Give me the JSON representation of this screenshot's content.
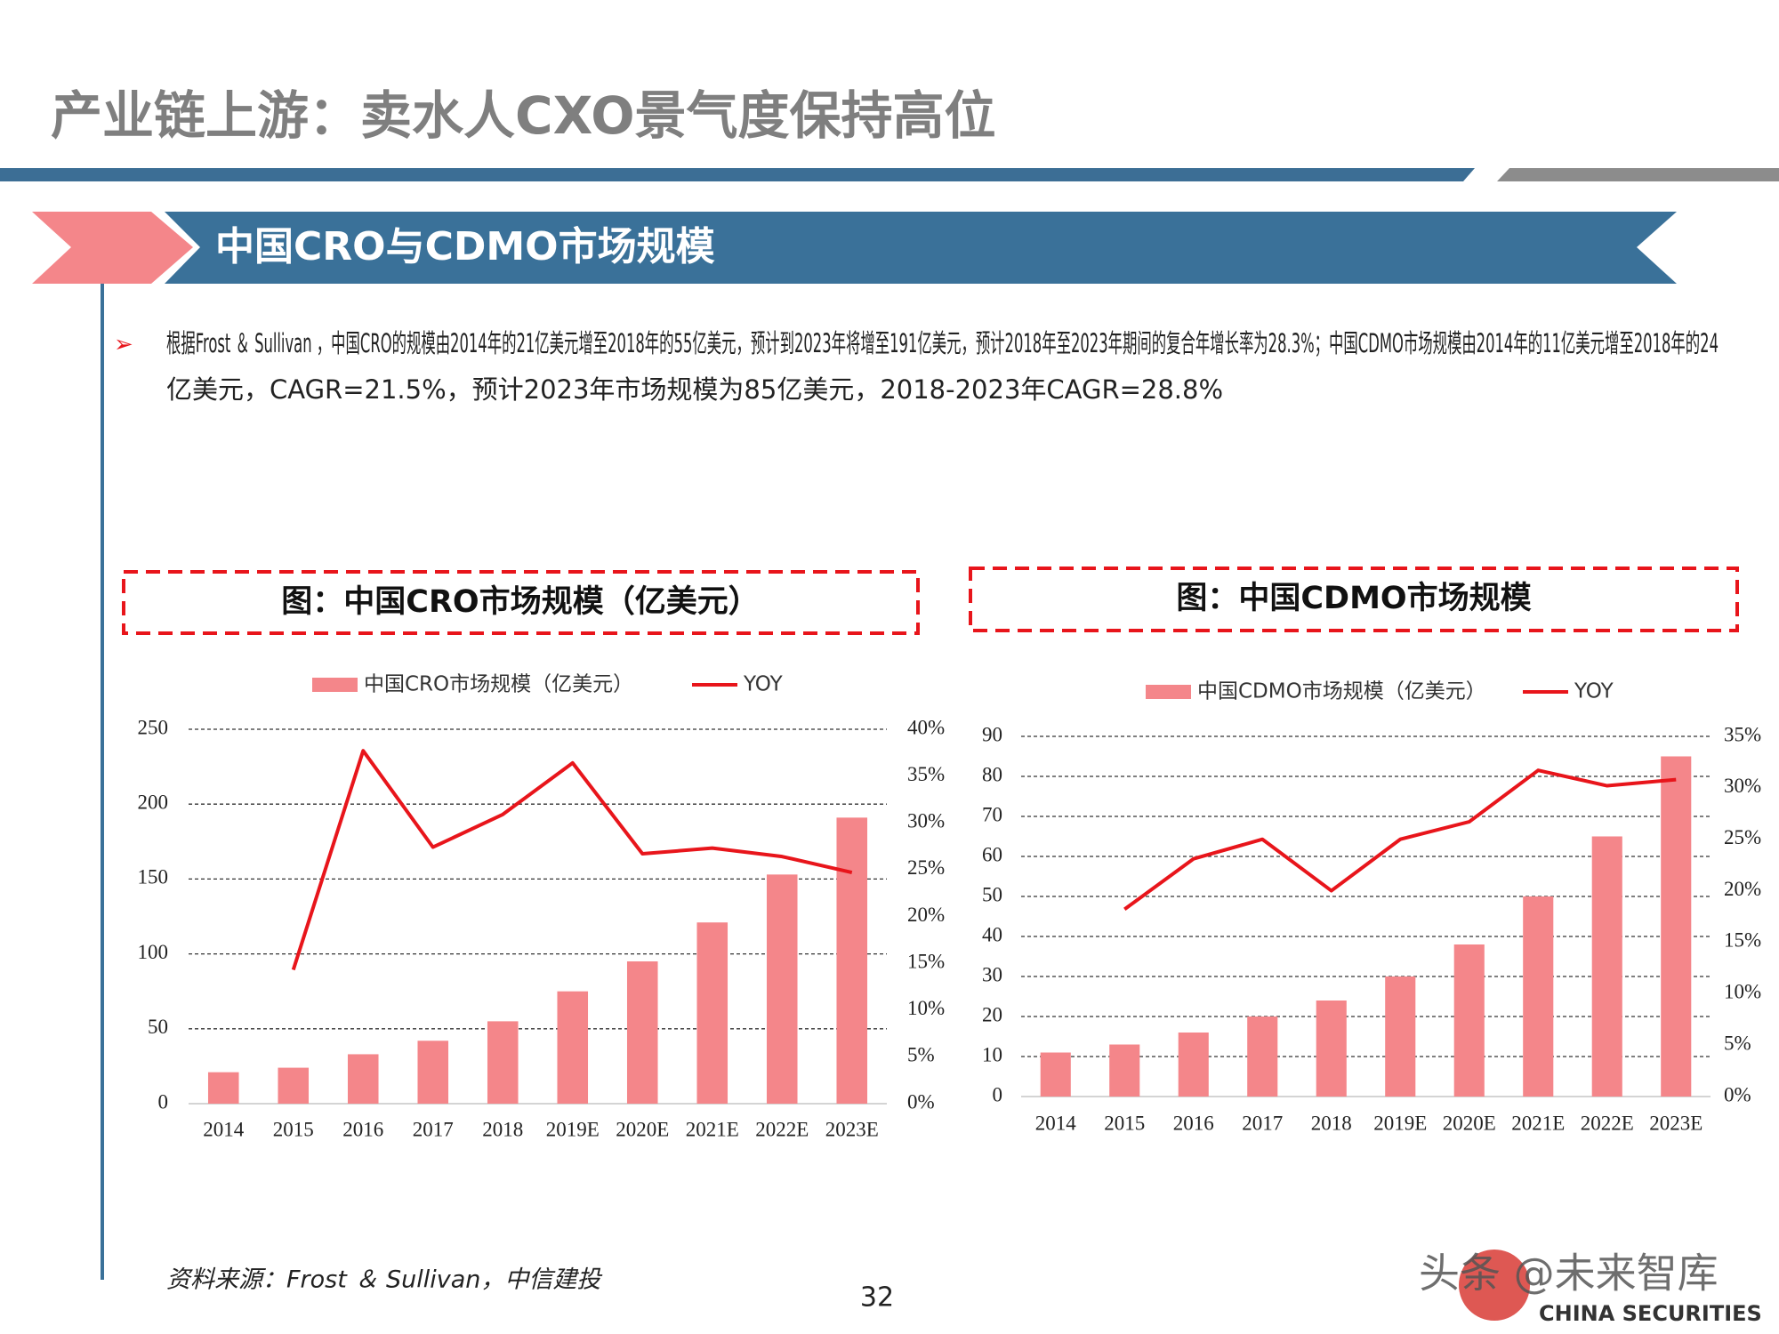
{
  "header": {
    "title": "产业链上游：卖水人CXO景气度保持高位"
  },
  "section": {
    "title": "中国CRO与CDMO市场规模"
  },
  "bullet": {
    "lines": [
      "根据Frost ＆ Sullivan ，中国CRO的规模由2014年的21亿美元增至2018年的55亿美元，预计到2023年将增至191亿美元，预计2018年至2023年期间的复合年增长率为28.3%；中国CDMO市场规模由2014年的11亿美元增至2018年的24",
      "亿美元，CAGR=21.5%，预计2023年市场规模为85亿美元，2018-2023年CAGR=28.8%"
    ]
  },
  "chart_data": [
    {
      "type": "bar-line",
      "title": "图：中国CRO市场规模（亿美元）",
      "categories": [
        "2014",
        "2015",
        "2016",
        "2017",
        "2018",
        "2019E",
        "2020E",
        "2021E",
        "2022E",
        "2023E"
      ],
      "series": [
        {
          "name": "中国CRO市场规模（亿美元）",
          "color": "#f4868a",
          "values": [
            21,
            24,
            33,
            42,
            55,
            75,
            95,
            121,
            153,
            191
          ]
        },
        {
          "name": "YOY",
          "color": "#e8151b",
          "axis": "y2",
          "values": [
            null,
            14.3,
            37.7,
            27.4,
            30.9,
            36.4,
            26.7,
            27.3,
            26.4,
            24.7
          ]
        }
      ],
      "ylim": [
        0,
        250
      ],
      "yticks": [
        0,
        50,
        100,
        150,
        200,
        250
      ],
      "y2lim": [
        0,
        40
      ],
      "y2ticks": [
        {
          "value": 0,
          "label": "0%"
        },
        {
          "value": 5,
          "label": "5%"
        },
        {
          "value": 10,
          "label": "10%"
        },
        {
          "value": 15,
          "label": "15%"
        },
        {
          "value": 20,
          "label": "20%"
        },
        {
          "value": 25,
          "label": "25%"
        },
        {
          "value": 30,
          "label": "30%"
        },
        {
          "value": 35,
          "label": "35%"
        },
        {
          "value": 40,
          "label": "40%"
        }
      ],
      "grid": true
    },
    {
      "type": "bar-line",
      "title": "图：中国CDMO市场规模",
      "categories": [
        "2014",
        "2015",
        "2016",
        "2017",
        "2018",
        "2019E",
        "2020E",
        "2021E",
        "2022E",
        "2023E"
      ],
      "series": [
        {
          "name": "中国CDMO市场规模（亿美元）",
          "color": "#f4868a",
          "values": [
            11,
            13,
            16,
            20,
            24,
            30,
            38,
            50,
            65,
            85
          ]
        },
        {
          "name": "YOY",
          "color": "#e8151b",
          "axis": "y2",
          "values": [
            null,
            18.2,
            23.1,
            25.0,
            20.0,
            25.0,
            26.7,
            31.7,
            30.2,
            30.8
          ]
        }
      ],
      "ylim": [
        0,
        90
      ],
      "yticks": [
        0,
        10,
        20,
        30,
        40,
        50,
        60,
        70,
        80,
        90
      ],
      "y2lim": [
        0,
        35
      ],
      "y2ticks": [
        {
          "value": 0,
          "label": "0%"
        },
        {
          "value": 5,
          "label": "5%"
        },
        {
          "value": 10,
          "label": "10%"
        },
        {
          "value": 15,
          "label": "15%"
        },
        {
          "value": 20,
          "label": "20%"
        },
        {
          "value": 25,
          "label": "25%"
        },
        {
          "value": 30,
          "label": "30%"
        },
        {
          "value": 35,
          "label": "35%"
        }
      ],
      "grid": true
    }
  ],
  "footer": {
    "source": "资料来源：Frost ＆ Sullivan，中信建投",
    "page": "32",
    "watermark": "头条 @未来智库",
    "logo": "CHINA SECURITIES"
  }
}
